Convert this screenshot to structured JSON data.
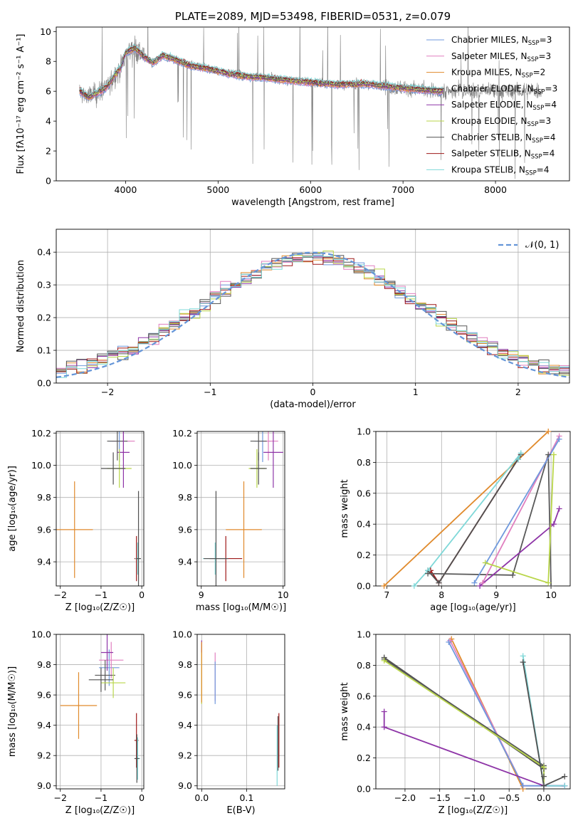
{
  "colors": {
    "Chabrier MILES": "#6f99dd",
    "Salpeter MILES": "#e07fbf",
    "Kroupa MILES": "#e08a2c",
    "Chabrier ELODIE": "#595959",
    "Salpeter ELODIE": "#8e35a7",
    "Kroupa ELODIE": "#b9d64a",
    "Chabrier STELIB": "#505050",
    "Salpeter STELIB": "#9e1818",
    "Kroupa STELIB": "#7fd8d8",
    "normal": "#6495d8",
    "grid": "#b0b0b0"
  },
  "chart_data": [
    {
      "id": "spectrum",
      "type": "line",
      "title": "PLATE=2089, MJD=53498, FIBERID=0531, z=0.079",
      "xlabel": "wavelength [Angstrom, rest frame]",
      "ylabel": "Flux [fλ10⁻¹⁷ erg cm⁻² s⁻¹ A⁻¹]",
      "xlim": [
        3250,
        8800
      ],
      "ylim": [
        0,
        10.3
      ],
      "xticks": [
        4000,
        5000,
        6000,
        7000,
        8000
      ],
      "yticks": [
        0,
        2,
        4,
        6,
        8,
        10
      ],
      "grid": false,
      "legend_position": "top-right",
      "legend": [
        {
          "label": "Chabrier MILES, N_SSP=3",
          "text": "Chabrier MILES, N",
          "sub": "SSP",
          "tail": "=3",
          "color_key": "Chabrier MILES"
        },
        {
          "label": "Salpeter MILES, N_SSP=3",
          "text": "Salpeter MILES, N",
          "sub": "SSP",
          "tail": "=3",
          "color_key": "Salpeter MILES"
        },
        {
          "label": "Kroupa MILES, N_SSP=2",
          "text": "Kroupa MILES, N",
          "sub": "SSP",
          "tail": "=2",
          "color_key": "Kroupa MILES"
        },
        {
          "label": "Chabrier ELODIE, N_SSP=3",
          "text": "Chabrier ELODIE, N",
          "sub": "SSP",
          "tail": "=3",
          "color_key": "Chabrier ELODIE"
        },
        {
          "label": "Salpeter ELODIE, N_SSP=4",
          "text": "Salpeter ELODIE, N",
          "sub": "SSP",
          "tail": "=4",
          "color_key": "Salpeter ELODIE"
        },
        {
          "label": "Kroupa ELODIE, N_SSP=3",
          "text": "Kroupa ELODIE, N",
          "sub": "SSP",
          "tail": "=3",
          "color_key": "Kroupa ELODIE"
        },
        {
          "label": "Chabrier STELIB, N_SSP=4",
          "text": "Chabrier STELIB, N",
          "sub": "SSP",
          "tail": "=4",
          "color_key": "Chabrier STELIB"
        },
        {
          "label": "Salpeter STELIB, N_SSP=4",
          "text": "Salpeter STELIB, N",
          "sub": "SSP",
          "tail": "=4",
          "color_key": "Salpeter STELIB"
        },
        {
          "label": "Kroupa STELIB, N_SSP=4",
          "text": "Kroupa STELIB, N",
          "sub": "SSP",
          "tail": "=4",
          "color_key": "Kroupa STELIB"
        }
      ],
      "continuum": [
        [
          3500,
          6.0
        ],
        [
          3600,
          5.6
        ],
        [
          3700,
          5.9
        ],
        [
          3800,
          6.3
        ],
        [
          3900,
          7.2
        ],
        [
          3950,
          7.6
        ],
        [
          4000,
          8.6
        ],
        [
          4100,
          8.9
        ],
        [
          4200,
          8.3
        ],
        [
          4300,
          7.9
        ],
        [
          4400,
          8.4
        ],
        [
          4500,
          8.2
        ],
        [
          4700,
          7.7
        ],
        [
          4900,
          7.5
        ],
        [
          5100,
          7.2
        ],
        [
          5300,
          7.0
        ],
        [
          5500,
          6.9
        ],
        [
          5800,
          6.7
        ],
        [
          6000,
          6.6
        ],
        [
          6300,
          6.45
        ],
        [
          6563,
          6.5
        ],
        [
          6800,
          6.35
        ],
        [
          7000,
          6.2
        ],
        [
          7200,
          6.1
        ],
        [
          7400,
          6.0
        ]
      ],
      "data_range": [
        3500,
        8500
      ],
      "model_range": [
        3500,
        7430
      ]
    },
    {
      "id": "residuals",
      "type": "line",
      "xlabel": "(data-model)/error",
      "ylabel": "Normed distribution",
      "xlim": [
        -2.5,
        2.5
      ],
      "ylim": [
        0,
        0.47
      ],
      "xticks": [
        -2,
        -1,
        0,
        1,
        2
      ],
      "yticks": [
        0.0,
        0.1,
        0.2,
        0.3,
        0.4
      ],
      "grid": true,
      "legend_position": "top-right",
      "normal_label": "𝒩(0, 1)",
      "bin_width": 0.1
    },
    {
      "id": "age-vs-Z",
      "type": "scatter",
      "xlabel": "Z [log₁₀(Z/Z☉)]",
      "ylabel": "age  [log₁₀(age/yr)]",
      "xlim": [
        -2.1,
        0.05
      ],
      "ylim": [
        9.25,
        10.21
      ],
      "xticks": [
        -2,
        -1,
        0
      ],
      "yticks": [
        9.4,
        9.6,
        9.8,
        10.0,
        10.2
      ],
      "grid": true,
      "points": [
        {
          "color_key": "Chabrier MILES",
          "x": -0.55,
          "y": 10.15,
          "xerr": 0.25,
          "yerr": 0.13
        },
        {
          "color_key": "Salpeter MILES",
          "x": -0.45,
          "y": 10.15,
          "xerr": 0.28,
          "yerr": 0.12
        },
        {
          "color_key": "Kroupa MILES",
          "x": -1.65,
          "y": 9.6,
          "xerr": 0.45,
          "yerr": 0.3
        },
        {
          "color_key": "Chabrier ELODIE",
          "x": -0.6,
          "y": 10.15,
          "xerr": 0.25,
          "yerr": 0.12
        },
        {
          "color_key": "Salpeter ELODIE",
          "x": -0.45,
          "y": 10.08,
          "xerr": 0.15,
          "yerr": 0.22
        },
        {
          "color_key": "Kroupa ELODIE",
          "x": -0.55,
          "y": 9.98,
          "xerr": 0.3,
          "yerr": 0.12
        },
        {
          "color_key": "Chabrier STELIB",
          "x": -0.7,
          "y": 9.98,
          "xerr": 0.3,
          "yerr": 0.1
        },
        {
          "color_key": "Salpeter STELIB",
          "x": -0.13,
          "y": 9.42,
          "xerr": 0.05,
          "yerr": 0.14
        },
        {
          "color_key": "Kroupa STELIB",
          "x": -0.1,
          "y": 9.42,
          "xerr": 0.06,
          "yerr": 0.1
        },
        {
          "color_key": "Chabrier STELIB",
          "x": -0.08,
          "y": 9.42,
          "xerr": 0.06,
          "yerr": 0.42
        }
      ]
    },
    {
      "id": "age-vs-mass",
      "type": "scatter",
      "xlabel": "mass [log₁₀(M/M☉)]",
      "ylabel": "",
      "xlim": [
        8.95,
        10.02
      ],
      "ylim": [
        9.25,
        10.21
      ],
      "xticks": [
        9,
        10
      ],
      "yticks": [
        9.4,
        9.6,
        9.8,
        10.0,
        10.2
      ],
      "grid": true,
      "points": [
        {
          "color_key": "Chabrier MILES",
          "x": 9.75,
          "y": 10.15,
          "xerr": 0.1,
          "yerr": 0.13
        },
        {
          "color_key": "Salpeter MILES",
          "x": 9.82,
          "y": 10.15,
          "xerr": 0.12,
          "yerr": 0.12
        },
        {
          "color_key": "Kroupa MILES",
          "x": 9.52,
          "y": 9.6,
          "xerr": 0.22,
          "yerr": 0.3
        },
        {
          "color_key": "Chabrier ELODIE",
          "x": 9.7,
          "y": 10.15,
          "xerr": 0.1,
          "yerr": 0.12
        },
        {
          "color_key": "Salpeter ELODIE",
          "x": 9.88,
          "y": 10.08,
          "xerr": 0.12,
          "yerr": 0.22
        },
        {
          "color_key": "Kroupa ELODIE",
          "x": 9.68,
          "y": 9.98,
          "xerr": 0.1,
          "yerr": 0.12
        },
        {
          "color_key": "Chabrier STELIB",
          "x": 9.7,
          "y": 9.98,
          "xerr": 0.1,
          "yerr": 0.1
        },
        {
          "color_key": "Salpeter STELIB",
          "x": 9.3,
          "y": 9.42,
          "xerr": 0.2,
          "yerr": 0.14
        },
        {
          "color_key": "Kroupa STELIB",
          "x": 9.17,
          "y": 9.42,
          "xerr": 0.15,
          "yerr": 0.1
        },
        {
          "color_key": "Chabrier STELIB",
          "x": 9.18,
          "y": 9.42,
          "xerr": 0.15,
          "yerr": 0.42
        }
      ]
    },
    {
      "id": "weight-vs-age",
      "type": "line",
      "xlabel": "age  [log₁₀(age/yr)]",
      "ylabel": "mass weight",
      "xlim": [
        6.8,
        10.35
      ],
      "ylim": [
        0,
        1.0
      ],
      "xticks": [
        7,
        8,
        9,
        10
      ],
      "yticks": [
        0.0,
        0.2,
        0.4,
        0.6,
        0.8,
        1.0
      ],
      "grid": true,
      "series": [
        {
          "color_key": "Kroupa MILES",
          "x": [
            6.95,
            9.95
          ],
          "y": [
            0.0,
            1.0
          ]
        },
        {
          "color_key": "Salpeter STELIB",
          "x": [
            7.8,
            7.95,
            9.45
          ],
          "y": [
            0.1,
            0.02,
            0.85
          ]
        },
        {
          "color_key": "Chabrier STELIB",
          "x": [
            7.75,
            7.95,
            9.45,
            9.4
          ],
          "y": [
            0.1,
            0.02,
            0.85,
            0.82
          ]
        },
        {
          "color_key": "Kroupa STELIB",
          "x": [
            7.5,
            7.75,
            9.45,
            9.4
          ],
          "y": [
            0.0,
            0.1,
            0.86,
            0.82
          ]
        },
        {
          "color_key": "Chabrier ELODIE",
          "x": [
            7.75,
            9.3,
            9.95,
            10.0
          ],
          "y": [
            0.08,
            0.07,
            0.85,
            0.0
          ]
        },
        {
          "color_key": "Salpeter MILES",
          "x": [
            8.75,
            10.15
          ],
          "y": [
            0.02,
            0.97
          ]
        },
        {
          "color_key": "Salpeter ELODIE",
          "x": [
            8.7,
            10.05,
            10.15
          ],
          "y": [
            0.0,
            0.4,
            0.5
          ]
        },
        {
          "color_key": "Kroupa ELODIE",
          "x": [
            8.8,
            9.95,
            10.05
          ],
          "y": [
            0.15,
            0.02,
            0.85
          ]
        },
        {
          "color_key": "Chabrier MILES",
          "x": [
            8.6,
            10.15
          ],
          "y": [
            0.02,
            0.95
          ]
        }
      ]
    },
    {
      "id": "mass-vs-Z",
      "type": "scatter",
      "xlabel": "Z [log₁₀(Z/Z☉)]",
      "ylabel": "mass [log₁₀(M/M☉)]",
      "xlim": [
        -2.1,
        0.05
      ],
      "ylim": [
        8.98,
        10.0
      ],
      "xticks": [
        -2,
        -1,
        0
      ],
      "yticks": [
        9.0,
        9.2,
        9.4,
        9.6,
        9.8,
        10.0
      ],
      "grid": true,
      "points": [
        {
          "color_key": "Chabrier MILES",
          "x": -0.8,
          "y": 9.78,
          "xerr": 0.25,
          "yerr": 0.12
        },
        {
          "color_key": "Salpeter MILES",
          "x": -0.75,
          "y": 9.83,
          "xerr": 0.3,
          "yerr": 0.12
        },
        {
          "color_key": "Kroupa MILES",
          "x": -1.55,
          "y": 9.53,
          "xerr": 0.45,
          "yerr": 0.22
        },
        {
          "color_key": "Chabrier ELODIE",
          "x": -0.9,
          "y": 9.73,
          "xerr": 0.25,
          "yerr": 0.1
        },
        {
          "color_key": "Salpeter ELODIE",
          "x": -0.85,
          "y": 9.88,
          "xerr": 0.15,
          "yerr": 0.12
        },
        {
          "color_key": "Kroupa ELODIE",
          "x": -0.7,
          "y": 9.68,
          "xerr": 0.3,
          "yerr": 0.1
        },
        {
          "color_key": "Chabrier STELIB",
          "x": -1.0,
          "y": 9.7,
          "xerr": 0.3,
          "yerr": 0.08
        },
        {
          "color_key": "Salpeter STELIB",
          "x": -0.13,
          "y": 9.3,
          "xerr": 0.05,
          "yerr": 0.18
        },
        {
          "color_key": "Kroupa STELIB",
          "x": -0.1,
          "y": 9.18,
          "xerr": 0.06,
          "yerr": 0.14
        },
        {
          "color_key": "Chabrier STELIB",
          "x": -0.12,
          "y": 9.18,
          "xerr": 0.06,
          "yerr": 0.16
        }
      ]
    },
    {
      "id": "mass-vs-ebv",
      "type": "scatter",
      "xlabel": "E(B-V)",
      "ylabel": "",
      "xlim": [
        -0.01,
        0.185
      ],
      "ylim": [
        8.98,
        10.0
      ],
      "xticks": [
        0.0,
        0.1
      ],
      "yticks": [
        9.0,
        9.2,
        9.4,
        9.6,
        9.8,
        10.0
      ],
      "grid": true,
      "points": [
        {
          "color_key": "Kroupa ELODIE",
          "x": 0.0,
          "y": 9.74,
          "xerr": 0,
          "yerr": 0.2
        },
        {
          "color_key": "Salpeter ELODIE",
          "x": 0.0,
          "y": 9.92,
          "xerr": 0,
          "yerr": 0.04
        },
        {
          "color_key": "Kroupa MILES",
          "x": 0.0,
          "y": 9.75,
          "xerr": 0,
          "yerr": 0.2
        },
        {
          "color_key": "Salpeter MILES",
          "x": 0.03,
          "y": 9.72,
          "xerr": 0,
          "yerr": 0.16
        },
        {
          "color_key": "Chabrier MILES",
          "x": 0.03,
          "y": 9.68,
          "xerr": 0,
          "yerr": 0.14
        },
        {
          "color_key": "Salpeter STELIB",
          "x": 0.172,
          "y": 9.3,
          "xerr": 0,
          "yerr": 0.18
        },
        {
          "color_key": "Kroupa STELIB",
          "x": 0.168,
          "y": 9.2,
          "xerr": 0,
          "yerr": 0.2
        },
        {
          "color_key": "Chabrier STELIB",
          "x": 0.17,
          "y": 9.28,
          "xerr": 0,
          "yerr": 0.18
        }
      ]
    },
    {
      "id": "weight-vs-Z",
      "type": "line",
      "xlabel": "Z [log₁₀(Z/Z☉)]",
      "ylabel": "mass weight",
      "xlim": [
        -2.42,
        0.38
      ],
      "ylim": [
        0,
        1.0
      ],
      "xticks": [
        -2.0,
        -1.5,
        -1.0,
        -0.5,
        0.0
      ],
      "yticks": [
        0.0,
        0.2,
        0.4,
        0.6,
        0.8,
        1.0
      ],
      "grid": true,
      "series": [
        {
          "color_key": "Kroupa MILES",
          "x": [
            -1.33,
            -0.3
          ],
          "y": [
            0.97,
            0.0
          ]
        },
        {
          "color_key": "Salpeter MILES",
          "x": [
            -1.35,
            -0.3,
            0.3
          ],
          "y": [
            0.96,
            0.02,
            0.02
          ]
        },
        {
          "color_key": "Chabrier MILES",
          "x": [
            -1.37,
            -0.3,
            0.3
          ],
          "y": [
            0.95,
            0.02,
            0.02
          ]
        },
        {
          "color_key": "Chabrier STELIB",
          "x": [
            -2.3,
            0.0,
            0.0,
            0.3
          ],
          "y": [
            0.85,
            0.13,
            0.02,
            0.08
          ]
        },
        {
          "color_key": "Chabrier ELODIE",
          "x": [
            -2.3,
            0.0,
            0.0
          ],
          "y": [
            0.84,
            0.15,
            0.08
          ]
        },
        {
          "color_key": "Kroupa ELODIE",
          "x": [
            -2.3,
            0.0,
            0.0
          ],
          "y": [
            0.83,
            0.14,
            0.02
          ]
        },
        {
          "color_key": "Salpeter ELODIE",
          "x": [
            -2.3,
            -2.3,
            0.0,
            0.3
          ],
          "y": [
            0.5,
            0.4,
            0.02,
            0.02
          ]
        },
        {
          "color_key": "Kroupa STELIB",
          "x": [
            -0.3,
            0.0,
            0.3
          ],
          "y": [
            0.86,
            0.02,
            0.02
          ]
        },
        {
          "color_key": "Chabrier STELIB",
          "x": [
            -0.3,
            0.0
          ],
          "y": [
            0.82,
            0.02
          ]
        }
      ]
    }
  ]
}
